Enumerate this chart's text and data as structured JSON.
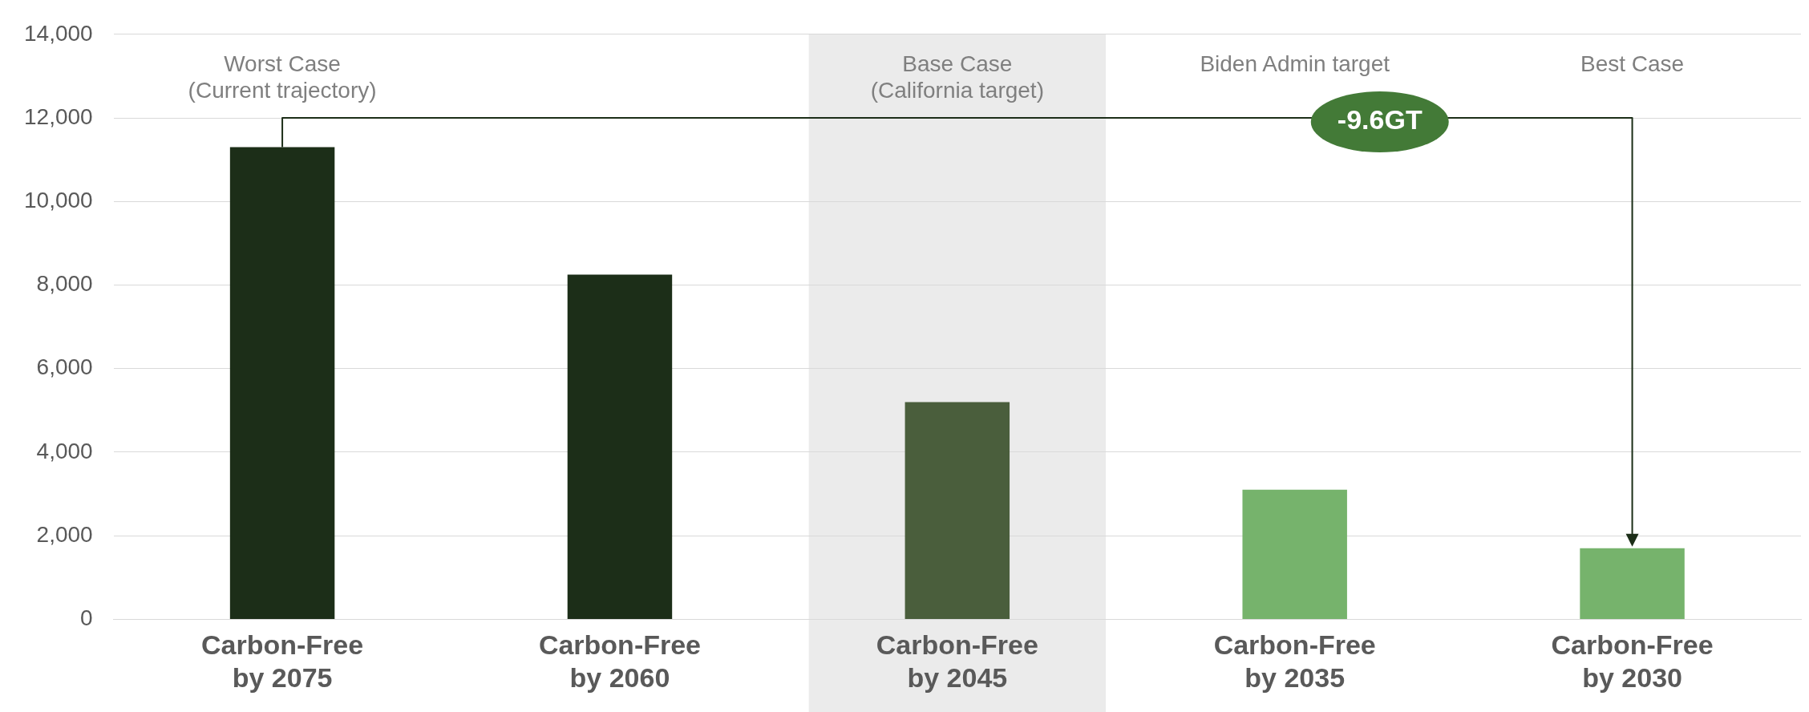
{
  "chart_data": {
    "type": "bar",
    "categories": [
      "Carbon-Free\nby 2075",
      "Carbon-Free\nby 2060",
      "Carbon-Free\nby 2045",
      "Carbon-Free\nby 2035",
      "Carbon-Free\nby 2030"
    ],
    "values": [
      11300,
      8250,
      5200,
      3100,
      1700
    ],
    "colors": [
      "#1c2e18",
      "#1c2e18",
      "#4a5e3c",
      "#76b36c",
      "#76b36c"
    ],
    "ylim": [
      0,
      14000
    ],
    "yticks": [
      {
        "value": 0,
        "label": "0"
      },
      {
        "value": 2000,
        "label": "2,000"
      },
      {
        "value": 4000,
        "label": "4,000"
      },
      {
        "value": 6000,
        "label": "6,000"
      },
      {
        "value": 8000,
        "label": "8,000"
      },
      {
        "value": 10000,
        "label": "10,000"
      },
      {
        "value": 12000,
        "label": "12,000"
      },
      {
        "value": 14000,
        "label": "14,000"
      }
    ],
    "grid": "y",
    "bands": [
      {
        "axis": "x",
        "from": "Carbon-Free\nby 2045",
        "to": "Carbon-Free\nby 2045",
        "color": "#ebebeb"
      }
    ],
    "annotations": [
      "Worst Case\n(Current trajectory)",
      "Base Case\n(California target)",
      "Biden Admin target",
      "Best Case",
      "-9.6GT"
    ]
  }
}
